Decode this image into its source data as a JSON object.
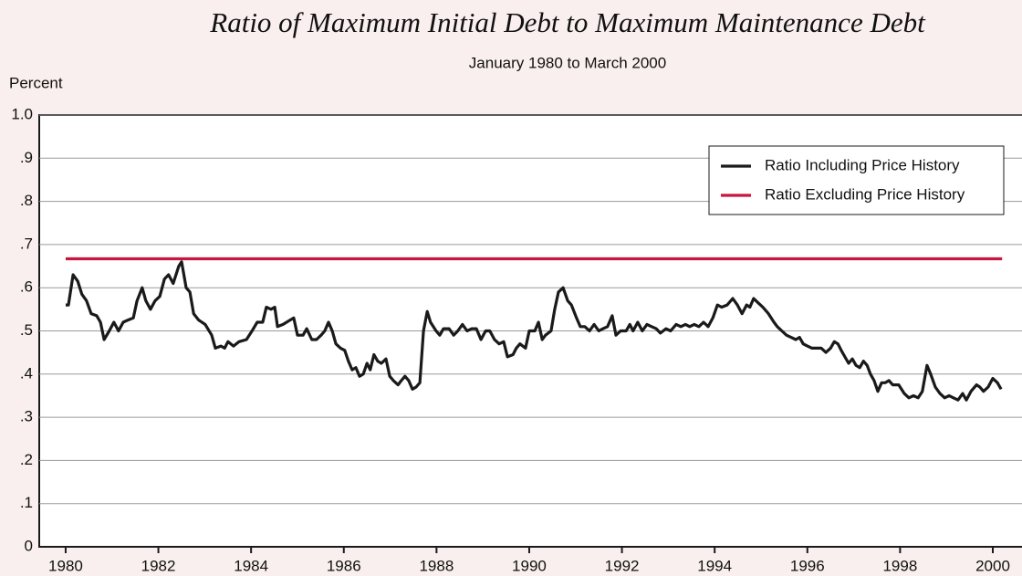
{
  "chart_data": {
    "type": "line",
    "title": "Ratio of Maximum Initial Debt to Maximum Maintenance Debt",
    "subtitle": "January 1980 to March 2000",
    "y_label": "Percent",
    "xlim": [
      1979.43,
      2000.63
    ],
    "xticks": [
      1980,
      1982,
      1984,
      1986,
      1988,
      1990,
      1992,
      1994,
      1996,
      1998,
      2000
    ],
    "ylim": [
      0,
      1
    ],
    "yticks": [
      0,
      {
        "value": 0.1,
        "label": ".1"
      },
      {
        "value": 0.2,
        "label": ".2"
      },
      {
        "value": 0.3,
        "label": ".3"
      },
      {
        "value": 0.4,
        "label": ".4"
      },
      {
        "value": 0.5,
        "label": ".5"
      },
      {
        "value": 0.6,
        "label": ".6"
      },
      {
        "value": 0.7,
        "label": ".7"
      },
      {
        "value": 0.8,
        "label": ".8"
      },
      {
        "value": 0.9,
        "label": ".9"
      },
      {
        "value": 1.0,
        "label": "1.0"
      }
    ],
    "grid": true,
    "legend": "upper right",
    "series": [
      {
        "name": "Ratio Including Price History",
        "color": "#1a1a1a",
        "x": [
          1980.0,
          1980.06,
          1980.16,
          1980.26,
          1980.35,
          1980.45,
          1980.55,
          1980.67,
          1980.75,
          1980.83,
          1980.94,
          1981.04,
          1981.14,
          1981.24,
          1981.34,
          1981.46,
          1981.54,
          1981.65,
          1981.73,
          1981.83,
          1981.93,
          1982.03,
          1982.13,
          1982.22,
          1982.32,
          1982.44,
          1982.5,
          1982.6,
          1982.68,
          1982.76,
          1982.87,
          1983.01,
          1983.15,
          1983.23,
          1983.35,
          1983.43,
          1983.5,
          1983.62,
          1983.74,
          1983.9,
          1984.02,
          1984.13,
          1984.25,
          1984.33,
          1984.43,
          1984.51,
          1984.57,
          1984.69,
          1984.84,
          1984.92,
          1985.0,
          1985.12,
          1985.2,
          1985.31,
          1985.41,
          1985.51,
          1985.59,
          1985.67,
          1985.75,
          1985.83,
          1985.93,
          1986.02,
          1986.1,
          1986.18,
          1986.26,
          1986.34,
          1986.42,
          1986.5,
          1986.57,
          1986.65,
          1986.73,
          1986.81,
          1986.91,
          1986.99,
          1987.07,
          1987.17,
          1987.24,
          1987.32,
          1987.4,
          1987.48,
          1987.56,
          1987.64,
          1987.72,
          1987.8,
          1987.87,
          1987.99,
          1988.07,
          1988.15,
          1988.27,
          1988.37,
          1988.46,
          1988.56,
          1988.66,
          1988.76,
          1988.86,
          1988.96,
          1989.06,
          1989.15,
          1989.25,
          1989.35,
          1989.45,
          1989.53,
          1989.65,
          1989.72,
          1989.8,
          1989.92,
          1990.0,
          1990.12,
          1990.2,
          1990.28,
          1990.35,
          1990.47,
          1990.55,
          1990.63,
          1990.73,
          1990.83,
          1990.91,
          1991.02,
          1991.1,
          1991.2,
          1991.3,
          1991.4,
          1991.5,
          1991.59,
          1991.69,
          1991.79,
          1991.87,
          1991.97,
          1992.09,
          1992.17,
          1992.24,
          1992.34,
          1992.44,
          1992.54,
          1992.64,
          1992.74,
          1992.83,
          1992.95,
          1993.05,
          1993.17,
          1993.27,
          1993.37,
          1993.46,
          1993.56,
          1993.66,
          1993.76,
          1993.86,
          1993.96,
          1994.06,
          1994.15,
          1994.27,
          1994.39,
          1994.49,
          1994.59,
          1994.69,
          1994.76,
          1994.84,
          1994.94,
          1995.04,
          1995.16,
          1995.28,
          1995.35,
          1995.45,
          1995.55,
          1995.65,
          1995.75,
          1995.83,
          1995.91,
          1996.0,
          1996.1,
          1996.2,
          1996.3,
          1996.4,
          1996.5,
          1996.58,
          1996.66,
          1996.73,
          1996.81,
          1996.89,
          1996.97,
          1997.05,
          1997.13,
          1997.21,
          1997.29,
          1997.36,
          1997.44,
          1997.52,
          1997.6,
          1997.68,
          1997.76,
          1997.84,
          1997.97,
          1998.09,
          1998.19,
          1998.29,
          1998.39,
          1998.48,
          1998.58,
          1998.66,
          1998.76,
          1998.86,
          1998.96,
          1999.06,
          1999.15,
          1999.25,
          1999.35,
          1999.43,
          1999.53,
          1999.65,
          1999.72,
          1999.8,
          1999.9,
          2000.0,
          2000.1,
          2000.18
        ],
        "values": [
          0.56,
          0.56,
          0.63,
          0.615,
          0.585,
          0.57,
          0.54,
          0.535,
          0.52,
          0.48,
          0.5,
          0.52,
          0.5,
          0.52,
          0.525,
          0.53,
          0.57,
          0.6,
          0.57,
          0.55,
          0.57,
          0.58,
          0.62,
          0.63,
          0.61,
          0.65,
          0.66,
          0.6,
          0.59,
          0.54,
          0.525,
          0.515,
          0.49,
          0.46,
          0.465,
          0.46,
          0.475,
          0.465,
          0.475,
          0.48,
          0.5,
          0.52,
          0.52,
          0.555,
          0.55,
          0.555,
          0.51,
          0.515,
          0.525,
          0.53,
          0.49,
          0.49,
          0.505,
          0.48,
          0.48,
          0.49,
          0.5,
          0.52,
          0.5,
          0.47,
          0.46,
          0.455,
          0.43,
          0.41,
          0.415,
          0.395,
          0.4,
          0.425,
          0.41,
          0.445,
          0.43,
          0.425,
          0.435,
          0.395,
          0.385,
          0.375,
          0.385,
          0.395,
          0.385,
          0.365,
          0.37,
          0.38,
          0.5,
          0.545,
          0.52,
          0.5,
          0.49,
          0.505,
          0.505,
          0.49,
          0.5,
          0.515,
          0.5,
          0.505,
          0.505,
          0.48,
          0.5,
          0.5,
          0.48,
          0.47,
          0.475,
          0.44,
          0.445,
          0.46,
          0.47,
          0.46,
          0.5,
          0.5,
          0.52,
          0.48,
          0.49,
          0.5,
          0.55,
          0.59,
          0.6,
          0.57,
          0.56,
          0.53,
          0.51,
          0.51,
          0.5,
          0.515,
          0.5,
          0.505,
          0.51,
          0.535,
          0.49,
          0.5,
          0.5,
          0.515,
          0.5,
          0.52,
          0.5,
          0.515,
          0.51,
          0.505,
          0.495,
          0.505,
          0.5,
          0.515,
          0.51,
          0.515,
          0.51,
          0.515,
          0.51,
          0.52,
          0.51,
          0.53,
          0.56,
          0.555,
          0.56,
          0.575,
          0.56,
          0.54,
          0.56,
          0.555,
          0.575,
          0.565,
          0.555,
          0.54,
          0.52,
          0.51,
          0.5,
          0.49,
          0.485,
          0.48,
          0.485,
          0.47,
          0.465,
          0.46,
          0.46,
          0.46,
          0.45,
          0.46,
          0.475,
          0.47,
          0.455,
          0.44,
          0.425,
          0.435,
          0.42,
          0.415,
          0.43,
          0.42,
          0.4,
          0.385,
          0.36,
          0.38,
          0.38,
          0.385,
          0.375,
          0.375,
          0.355,
          0.345,
          0.35,
          0.345,
          0.36,
          0.42,
          0.4,
          0.37,
          0.355,
          0.345,
          0.35,
          0.345,
          0.34,
          0.355,
          0.34,
          0.36,
          0.375,
          0.37,
          0.36,
          0.37,
          0.39,
          0.38,
          0.365
        ]
      },
      {
        "name": "Ratio Excluding Price History",
        "color": "#c8163f",
        "x": [
          1980.0,
          2000.2
        ],
        "values": [
          0.667,
          0.667
        ]
      }
    ]
  }
}
